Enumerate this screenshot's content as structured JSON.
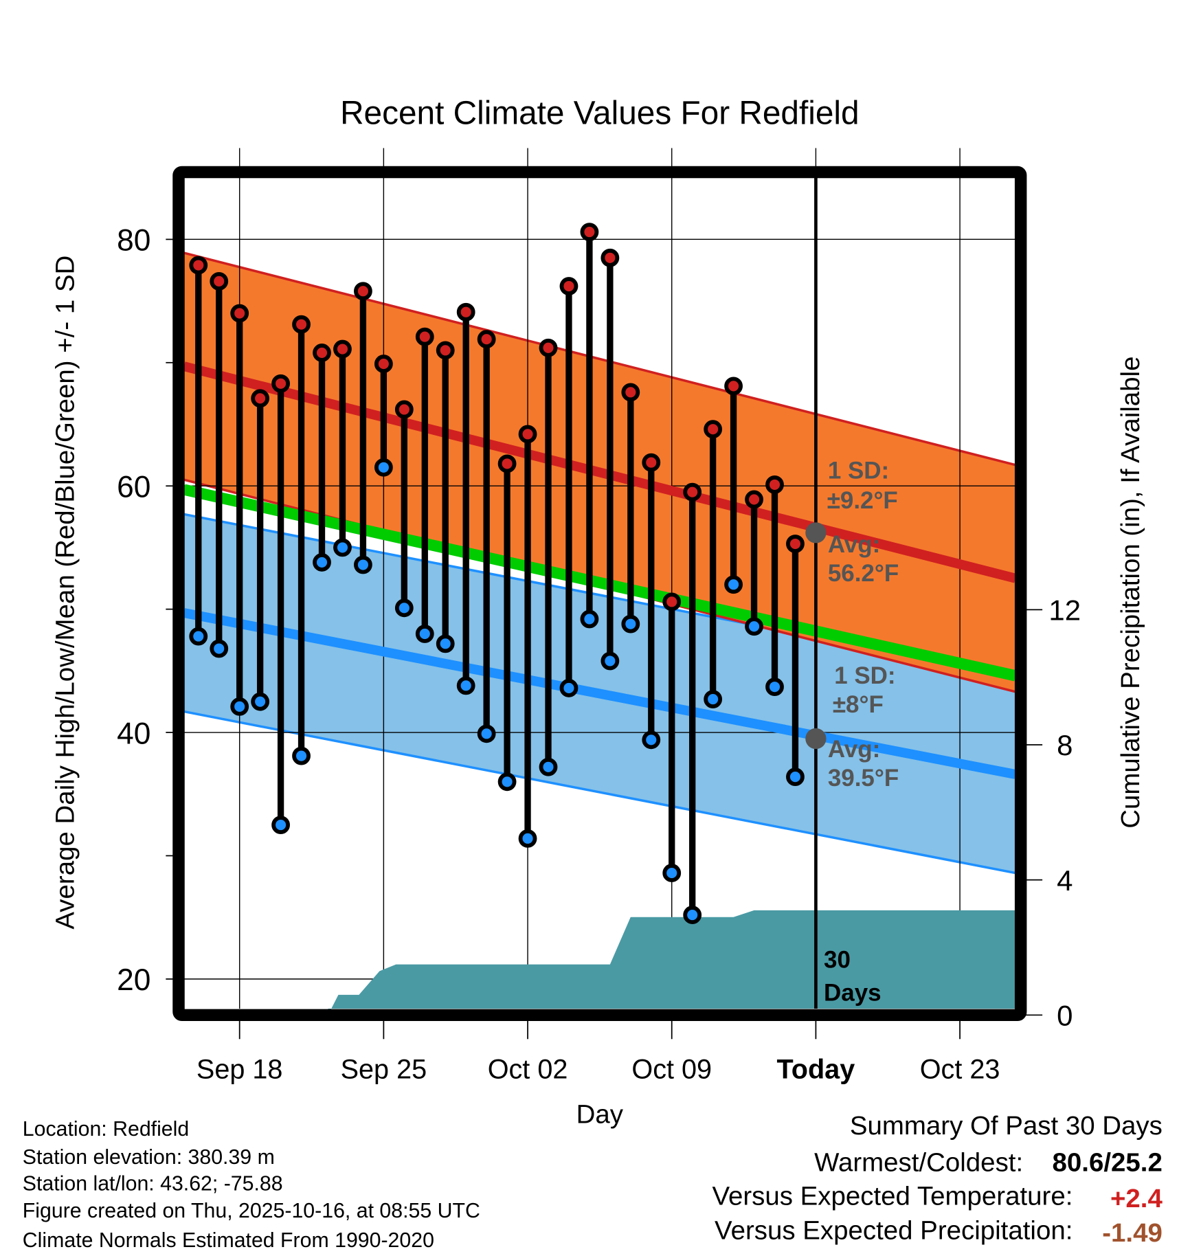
{
  "chart_data": {
    "type": "line",
    "title": "Recent Climate Values For Redfield",
    "xlabel": "Day",
    "ylabel": "Average Daily High/Low/Mean (Red/Blue/Green) +/- 1 SD",
    "y2label": "Cumulative Precipitation (in), If Available",
    "ylim": [
      17.6,
      84.9
    ],
    "y2lim": [
      0,
      16
    ],
    "xlim_days_rel_today": [
      -30.7,
      9.7
    ],
    "grid": true,
    "yticks": [
      20,
      40,
      60,
      80
    ],
    "y_minor_ticks": [
      30,
      50,
      70
    ],
    "y2ticks": [
      0,
      4,
      8,
      12
    ],
    "xticks": [
      {
        "day": -28,
        "label": "Sep 18"
      },
      {
        "day": -21,
        "label": "Sep 25"
      },
      {
        "day": -14,
        "label": "Oct 02"
      },
      {
        "day": -7,
        "label": "Oct 09"
      },
      {
        "day": 0,
        "label": "Today"
      },
      {
        "day": 7,
        "label": "Oct 23"
      }
    ],
    "observations": {
      "days_rel_today": [
        -30,
        -29,
        -28,
        -27,
        -26,
        -25,
        -24,
        -23,
        -22,
        -21,
        -20,
        -19,
        -18,
        -17,
        -16,
        -15,
        -14,
        -13,
        -12,
        -11,
        -10,
        -9,
        -8,
        -7,
        -6,
        -5,
        -4,
        -3,
        -2,
        -1
      ],
      "high": [
        77.9,
        76.6,
        74.0,
        67.1,
        68.3,
        73.1,
        70.8,
        71.1,
        75.8,
        69.9,
        66.2,
        72.1,
        71.0,
        74.1,
        71.9,
        61.8,
        64.2,
        71.2,
        76.2,
        80.6,
        78.5,
        67.6,
        61.9,
        50.6,
        59.5,
        64.6,
        68.1,
        58.9,
        60.1,
        55.3
      ],
      "low": [
        47.8,
        46.8,
        42.1,
        42.5,
        32.5,
        38.1,
        53.8,
        55.0,
        53.6,
        61.5,
        50.1,
        48.0,
        47.2,
        43.8,
        39.9,
        36.0,
        31.4,
        37.2,
        43.6,
        49.2,
        45.8,
        48.8,
        39.4,
        28.6,
        25.2,
        42.7,
        52.0,
        48.6,
        43.7,
        36.4
      ]
    },
    "normals": {
      "days_rel_today": [
        -30.7,
        9.7
      ],
      "avg_high": [
        69.7,
        52.5
      ],
      "avg_high_sd": 9.2,
      "avg_low": [
        49.7,
        36.6
      ],
      "avg_low_sd": 8.0,
      "avg_mean": [
        59.7,
        44.6
      ]
    },
    "precip_cumulative": [
      [
        -23.7,
        0
      ],
      [
        -23.2,
        0.6
      ],
      [
        -22.2,
        0.6
      ],
      [
        -21.2,
        1.3
      ],
      [
        -20.4,
        1.5
      ],
      [
        -10.0,
        1.5
      ],
      [
        -9.0,
        2.9
      ],
      [
        -4.0,
        2.9
      ],
      [
        -3.0,
        3.1
      ],
      [
        9.7,
        3.1
      ]
    ],
    "annotations": {
      "high_sd_label": "1 SD:",
      "high_sd_value": "±9.2°F",
      "high_avg_label": "Avg:",
      "high_avg_value": "56.2°F",
      "low_sd_label": "1 SD:",
      "low_sd_value": "±8°F",
      "low_avg_label": "Avg:",
      "low_avg_value": "39.5°F",
      "today_high_avg": 56.2,
      "today_low_avg": 39.5,
      "window_label_1": "30",
      "window_label_2": "Days"
    },
    "colors": {
      "high_band": "#f5792c",
      "high_line": "#d02020",
      "low_band": "#85c1e9",
      "low_line": "#1e90ff",
      "mean_line": "#00cc00",
      "precip": "#4a9aa4",
      "annotation": "#555555"
    }
  },
  "footer": {
    "info": [
      "Location: Redfield",
      "Station elevation: 380.39 m",
      "Station lat/lon: 43.62; -75.88",
      "Figure created on Thu, 2025-10-16, at 08:55 UTC",
      "Climate Normals Estimated From 1990-2020"
    ],
    "summary_title": "Summary Of Past 30 Days",
    "warmest_coldest_label": "Warmest/Coldest:",
    "warmest_coldest_value": "80.6/25.2",
    "temp_label": "Versus Expected Temperature:",
    "temp_value": "+2.4",
    "precip_label": "Versus Expected Precipitation:",
    "precip_value": "-1.49",
    "temp_value_color": "#d02020",
    "precip_value_color": "#a0522d"
  }
}
